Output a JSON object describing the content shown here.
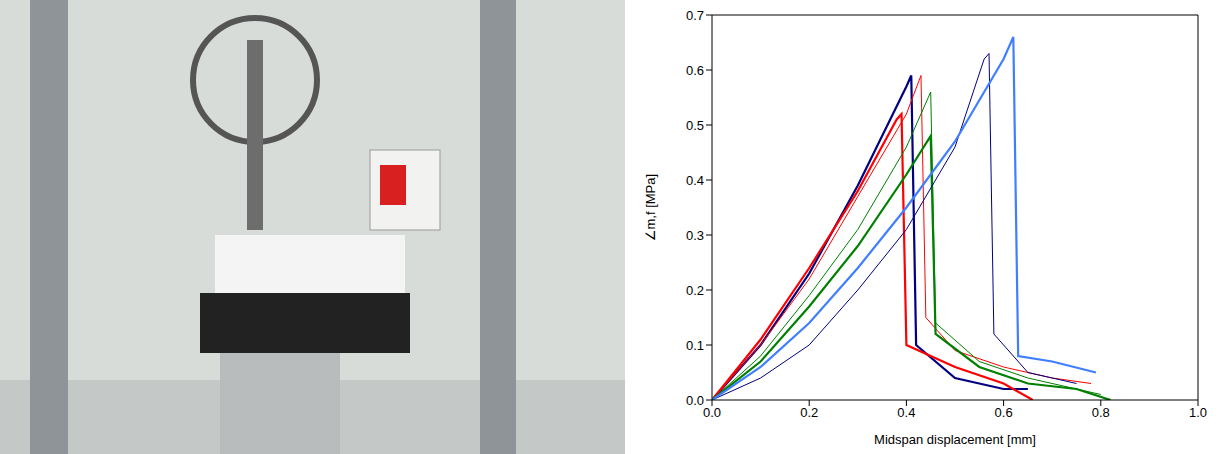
{
  "chart_data": {
    "type": "line",
    "x_label": "Midspan displacement [mm]",
    "y_label": "∠m,f [MPa]",
    "xlim": [
      0,
      1
    ],
    "xticks": [
      {
        "value": 0,
        "label": "0.0"
      },
      0.2,
      0.4,
      0.6,
      0.8,
      {
        "value": 1,
        "label": "1.0"
      }
    ],
    "ylim": [
      0,
      0.7
    ],
    "yticks": [
      {
        "value": 0,
        "label": "0.0"
      },
      0.1,
      0.2,
      0.3,
      0.4,
      0.5,
      0.6,
      0.7
    ],
    "grid": false,
    "series": [
      {
        "color": "#000080",
        "line_style": "solid",
        "x": [
          0,
          0.1,
          0.2,
          0.3,
          0.4,
          0.41,
          0.42,
          0.5,
          0.6,
          0.65
        ],
        "values": [
          0,
          0.1,
          0.23,
          0.39,
          0.57,
          0.59,
          0.1,
          0.04,
          0.02,
          0.02
        ]
      },
      {
        "color": "#ff0000",
        "line_style": "solid",
        "x": [
          0,
          0.1,
          0.2,
          0.3,
          0.38,
          0.39,
          0.4,
          0.5,
          0.6,
          0.66
        ],
        "values": [
          0,
          0.11,
          0.24,
          0.38,
          0.51,
          0.52,
          0.1,
          0.06,
          0.03,
          0
        ]
      },
      {
        "color": "#ff0000",
        "line_style": "solid",
        "x": [
          0,
          0.1,
          0.2,
          0.3,
          0.4,
          0.43,
          0.44,
          0.5,
          0.6,
          0.7,
          0.78
        ],
        "values": [
          0,
          0.1,
          0.22,
          0.37,
          0.52,
          0.59,
          0.15,
          0.09,
          0.06,
          0.04,
          0.03
        ]
      },
      {
        "color": "#008000",
        "line_style": "solid",
        "x": [
          0,
          0.1,
          0.2,
          0.3,
          0.4,
          0.45,
          0.46,
          0.55,
          0.65,
          0.75,
          0.8
        ],
        "values": [
          0,
          0.08,
          0.19,
          0.31,
          0.46,
          0.56,
          0.14,
          0.07,
          0.04,
          0.02,
          0.01
        ]
      },
      {
        "color": "#008000",
        "line_style": "solid",
        "x": [
          0,
          0.1,
          0.2,
          0.3,
          0.4,
          0.45,
          0.46,
          0.55,
          0.65,
          0.75,
          0.82
        ],
        "values": [
          0,
          0.07,
          0.17,
          0.28,
          0.41,
          0.48,
          0.12,
          0.06,
          0.03,
          0.02,
          0
        ]
      },
      {
        "color": "#000080",
        "line_style": "solid",
        "x": [
          0,
          0.1,
          0.2,
          0.3,
          0.4,
          0.5,
          0.56,
          0.57,
          0.58,
          0.65,
          0.75
        ],
        "values": [
          0,
          0.04,
          0.1,
          0.2,
          0.31,
          0.46,
          0.62,
          0.63,
          0.12,
          0.05,
          0.03
        ]
      },
      {
        "color": "#3f7fff",
        "line_style": "solid",
        "x": [
          0,
          0.1,
          0.2,
          0.3,
          0.4,
          0.5,
          0.6,
          0.62,
          0.63,
          0.7,
          0.79
        ],
        "values": [
          0,
          0.06,
          0.14,
          0.24,
          0.35,
          0.47,
          0.62,
          0.66,
          0.08,
          0.07,
          0.05
        ]
      }
    ]
  }
}
